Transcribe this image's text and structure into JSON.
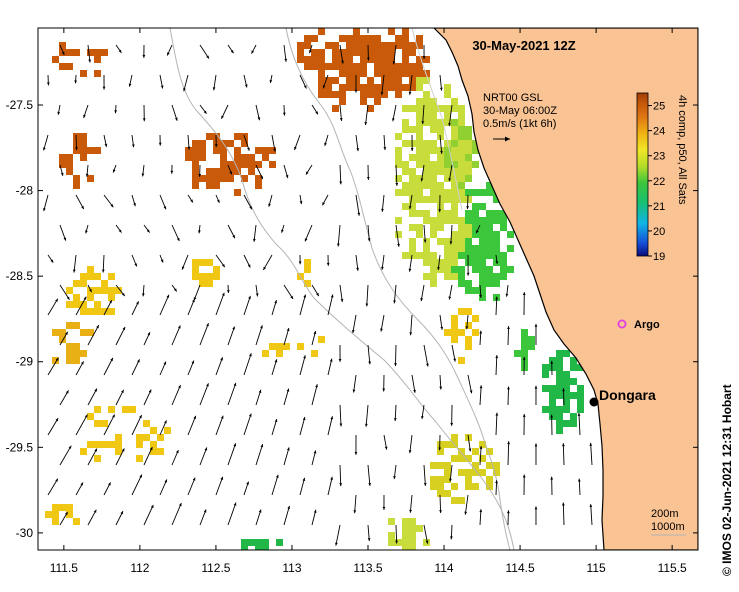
{
  "title": "30-May-2021 12Z",
  "legend": {
    "line1": "NRT00 GSL",
    "line2": "30-May 06:00Z",
    "line3": "0.5m/s (1kt 6h)"
  },
  "colorbar": {
    "label": "4h comp, p50, All Sats",
    "ticks": [
      "25",
      "24",
      "23",
      "22",
      "21",
      "20",
      "19"
    ],
    "min": 19,
    "max": 25.5,
    "colors": [
      "#0a0a7a",
      "#1450d8",
      "#12b4e6",
      "#18c070",
      "#3cc63c",
      "#b4dc28",
      "#f0e628",
      "#f0b414",
      "#e07814",
      "#c85a0a",
      "#a03c05"
    ]
  },
  "places": {
    "dongara": "Dongara",
    "argo": "Argo"
  },
  "depth_contours": {
    "line1": "200m",
    "line2": "1000m"
  },
  "x_axis": {
    "ticks": [
      "111.5",
      "112",
      "112.5",
      "113",
      "113.5",
      "114",
      "114.5",
      "115",
      "115.5"
    ],
    "values": [
      111.5,
      112,
      112.5,
      113,
      113.5,
      114,
      114.5,
      115,
      115.5
    ],
    "range": [
      111.33,
      115.67
    ]
  },
  "y_axis": {
    "ticks": [
      "-27.5",
      "-28",
      "-28.5",
      "-29",
      "-29.5",
      "-30"
    ],
    "values": [
      -27.5,
      -28,
      -28.5,
      -29,
      -29.5,
      -30
    ],
    "range": [
      -30.1,
      -27.05
    ]
  },
  "credit": "© IMOS 02-Jun-2021 12:31 Hobart",
  "colors": {
    "land": "#f9c394",
    "coast": "#000000",
    "contour": "#b4b4b4",
    "arrow": "#000000",
    "argo_marker": "#e040e0"
  }
}
